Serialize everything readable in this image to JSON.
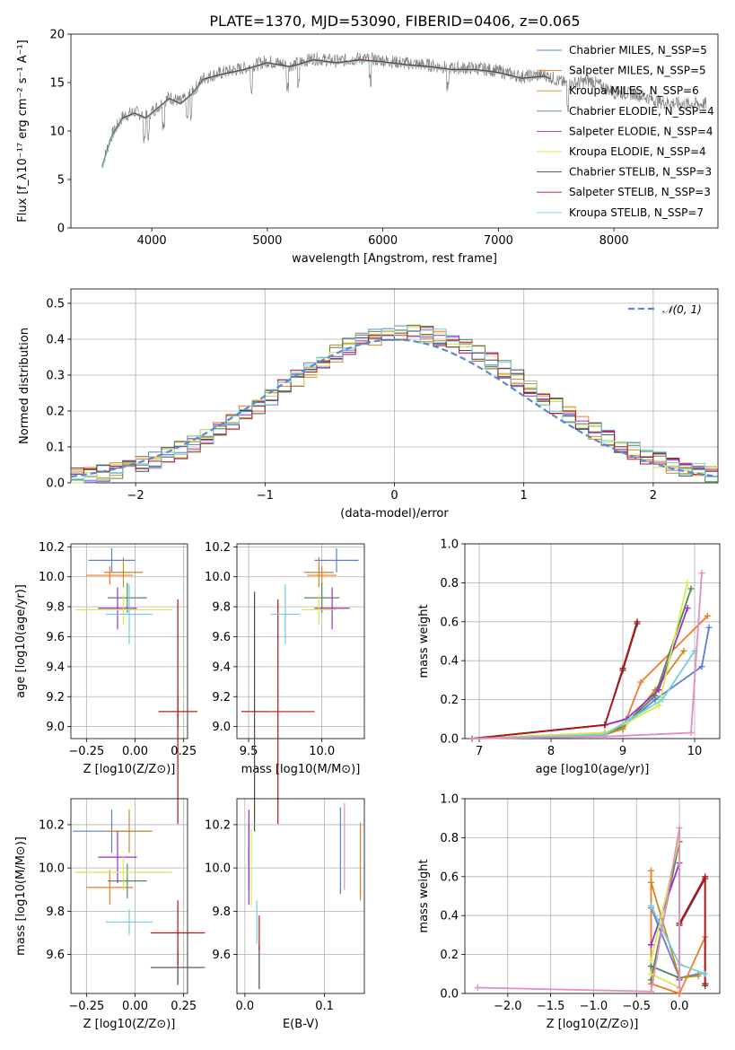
{
  "figure_title": "PLATE=1370, MJD=53090, FIBERID=0406, z=0.065",
  "colors": {
    "Chabrier MILES": "#5b7fd6",
    "Salpeter MILES": "#ee7a2a",
    "Kroupa MILES": "#c98a1e",
    "Chabrier ELODIE": "#4e8a4e",
    "Salpeter ELODIE": "#9b30c9",
    "Kroupa ELODIE": "#d7ea4c",
    "Chabrier STELIB": "#4a4a4a",
    "Salpeter STELIB": "#b81414",
    "Kroupa STELIB": "#6fd0dc"
  },
  "chart_data": [
    {
      "id": "spectrum",
      "type": "line",
      "title": "PLATE=1370, MJD=53090, FIBERID=0406, z=0.065",
      "xlabel": "wavelength [Angstrom, rest frame]",
      "ylabel": "Flux [f_λ10⁻¹⁷ erg cm⁻² s⁻¹ A⁻¹]",
      "xlim": [
        3300,
        8900
      ],
      "ylim": [
        0,
        20
      ],
      "xticks": [
        "4000",
        "5000",
        "6000",
        "7000",
        "8000"
      ],
      "yticks": [
        "0",
        "5",
        "10",
        "15",
        "20"
      ],
      "grid": false,
      "legend_position": "top-right",
      "legend": [
        "Chabrier MILES, N_SSP=5",
        "Salpeter MILES, N_SSP=5",
        "Kroupa MILES, N_SSP=6",
        "Chabrier ELODIE, N_SSP=4",
        "Salpeter ELODIE, N_SSP=4",
        "Kroupa ELODIE, N_SSP=4",
        "Chabrier STELIB, N_SSP=3",
        "Salpeter STELIB, N_SSP=3",
        "Kroupa STELIB, N_SSP=7"
      ],
      "data_continuum": [
        [
          3570,
          6.5
        ],
        [
          3650,
          9.5
        ],
        [
          3750,
          11.5
        ],
        [
          3850,
          12
        ],
        [
          3950,
          11.5
        ],
        [
          4050,
          12.5
        ],
        [
          4150,
          13.5
        ],
        [
          4250,
          13
        ],
        [
          4350,
          14
        ],
        [
          4450,
          15.5
        ],
        [
          4600,
          16
        ],
        [
          4800,
          16.5
        ],
        [
          5000,
          17.2
        ],
        [
          5200,
          16.8
        ],
        [
          5400,
          17.5
        ],
        [
          5600,
          17.2
        ],
        [
          5800,
          17.5
        ],
        [
          6000,
          17.3
        ],
        [
          6200,
          17
        ],
        [
          6400,
          16.8
        ],
        [
          6600,
          16.5
        ],
        [
          6800,
          16.5
        ],
        [
          7000,
          16.2
        ],
        [
          7200,
          15.6
        ],
        [
          7400,
          15.8
        ],
        [
          7600,
          14.8
        ],
        [
          7800,
          15.2
        ],
        [
          8000,
          14
        ],
        [
          8200,
          13.8
        ],
        [
          8400,
          13
        ],
        [
          8600,
          12.8
        ],
        [
          8800,
          12.8
        ]
      ]
    },
    {
      "id": "residuals",
      "type": "line",
      "xlabel": "(data-model)/error",
      "ylabel": "Normed distribution",
      "xlim": [
        -2.5,
        2.5
      ],
      "ylim": [
        0,
        0.54
      ],
      "xticks": [
        "−2",
        "−1",
        "0",
        "1",
        "2"
      ],
      "yticks": [
        "0.0",
        "0.1",
        "0.2",
        "0.3",
        "0.4",
        "0.5"
      ],
      "grid": true,
      "legend_position": "top-right",
      "legend": [
        "𝒩(0, 1)"
      ],
      "bin_width": 0.1
    },
    {
      "id": "age_vs_Z",
      "type": "scatter",
      "xlabel": "Z [log10(Z/Z⊙)]",
      "ylabel": "age [log10(age/yr)]",
      "xlim": [
        -0.33,
        0.27
      ],
      "ylim": [
        8.92,
        10.22
      ],
      "xticks": [
        "−0.25",
        "0.00",
        "0.25"
      ],
      "yticks": [
        "9.0",
        "9.2",
        "9.4",
        "9.6",
        "9.8",
        "10.0",
        "10.2"
      ],
      "grid": true,
      "points": [
        {
          "model": "Chabrier MILES",
          "x": -0.12,
          "y": 10.11,
          "xerr": 0.12,
          "yerr": 0.08
        },
        {
          "model": "Salpeter MILES",
          "x": -0.13,
          "y": 10.01,
          "xerr": 0.12,
          "yerr": 0.06
        },
        {
          "model": "Kroupa MILES",
          "x": -0.06,
          "y": 10.03,
          "xerr": 0.1,
          "yerr": 0.1
        },
        {
          "model": "Chabrier ELODIE",
          "x": -0.04,
          "y": 9.86,
          "xerr": 0.1,
          "yerr": 0.1
        },
        {
          "model": "Salpeter ELODIE",
          "x": -0.09,
          "y": 9.79,
          "xerr": 0.1,
          "yerr": 0.14
        },
        {
          "model": "Kroupa ELODIE",
          "x": -0.06,
          "y": 9.78,
          "xerr": 0.25,
          "yerr": 0.1
        },
        {
          "model": "Chabrier STELIB",
          "x": 0.22,
          "y": 9.1,
          "xerr": 0.1,
          "yerr": 0.1
        },
        {
          "model": "Salpeter STELIB",
          "x": 0.22,
          "y": 9.1,
          "xerr": 0.1,
          "yerr": 0.75
        },
        {
          "model": "Kroupa STELIB",
          "x": -0.03,
          "y": 9.75,
          "xerr": 0.12,
          "yerr": 0.2
        }
      ]
    },
    {
      "id": "age_vs_mass",
      "type": "scatter",
      "xlabel": "mass [log10(M/M⊙)]",
      "ylabel": "",
      "xlim": [
        9.42,
        10.29
      ],
      "ylim": [
        8.92,
        10.22
      ],
      "xticks": [
        "9.5",
        "10.0"
      ],
      "yticks": [
        "9.0",
        "9.2",
        "9.4",
        "9.6",
        "9.8",
        "10.0",
        "10.2"
      ],
      "grid": true,
      "points": [
        {
          "model": "Chabrier MILES",
          "x": 10.1,
          "y": 10.11,
          "xerr": 0.15,
          "yerr": 0.08
        },
        {
          "model": "Salpeter MILES",
          "x": 10.0,
          "y": 10.01,
          "xerr": 0.1,
          "yerr": 0.06
        },
        {
          "model": "Kroupa MILES",
          "x": 9.98,
          "y": 10.03,
          "xerr": 0.1,
          "yerr": 0.1
        },
        {
          "model": "Chabrier ELODIE",
          "x": 10.0,
          "y": 9.86,
          "xerr": 0.12,
          "yerr": 0.1
        },
        {
          "model": "Salpeter ELODIE",
          "x": 10.07,
          "y": 9.79,
          "xerr": 0.12,
          "yerr": 0.14
        },
        {
          "model": "Kroupa ELODIE",
          "x": 9.98,
          "y": 9.78,
          "xerr": 0.12,
          "yerr": 0.1
        },
        {
          "model": "Chabrier STELIB",
          "x": 9.54,
          "y": 9.1,
          "xerr": 0.09,
          "yerr": 0.8
        },
        {
          "model": "Salpeter STELIB",
          "x": 9.7,
          "y": 9.1,
          "xerr": 0.25,
          "yerr": 0.75
        },
        {
          "model": "Kroupa STELIB",
          "x": 9.75,
          "y": 9.75,
          "xerr": 0.1,
          "yerr": 0.2
        }
      ]
    },
    {
      "id": "weight_vs_age",
      "type": "line",
      "xlabel": "age [log10(age/yr)]",
      "ylabel": "mass weight",
      "xlim": [
        6.8,
        10.35
      ],
      "ylim": [
        0,
        1
      ],
      "xticks": [
        "7",
        "8",
        "9",
        "10"
      ],
      "yticks": [
        "0.0",
        "0.2",
        "0.4",
        "0.6",
        "0.8",
        "1.0"
      ],
      "grid": true,
      "series": [
        {
          "model": "Chabrier MILES",
          "x": [
            6.9,
            8.75,
            9.0,
            9.45,
            10.1,
            10.2
          ],
          "y": [
            0.0,
            0.02,
            0.06,
            0.2,
            0.37,
            0.57
          ]
        },
        {
          "model": "Salpeter MILES",
          "x": [
            6.9,
            8.75,
            9.0,
            9.25,
            10.18
          ],
          "y": [
            0.0,
            0.02,
            0.05,
            0.29,
            0.63
          ]
        },
        {
          "model": "Kroupa MILES",
          "x": [
            6.9,
            8.75,
            9.0,
            9.45,
            9.85
          ],
          "y": [
            0.0,
            0.03,
            0.05,
            0.25,
            0.45
          ]
        },
        {
          "model": "Chabrier ELODIE",
          "x": [
            6.9,
            8.75,
            9.05,
            9.45,
            9.95
          ],
          "y": [
            0.0,
            0.02,
            0.08,
            0.22,
            0.77
          ]
        },
        {
          "model": "Salpeter ELODIE",
          "x": [
            6.9,
            8.75,
            9.05,
            9.5,
            9.9
          ],
          "y": [
            0.0,
            0.07,
            0.1,
            0.25,
            0.67
          ]
        },
        {
          "model": "Kroupa ELODIE",
          "x": [
            6.9,
            8.75,
            9.05,
            9.5,
            9.9
          ],
          "y": [
            0.0,
            0.03,
            0.08,
            0.17,
            0.8
          ]
        },
        {
          "model": "Chabrier STELIB",
          "x": [
            6.9,
            8.75,
            9.0,
            9.2
          ],
          "y": [
            0.0,
            0.07,
            0.35,
            0.59
          ]
        },
        {
          "model": "Salpeter STELIB",
          "x": [
            6.9,
            8.75,
            9.0,
            9.2
          ],
          "y": [
            0.0,
            0.07,
            0.36,
            0.6
          ]
        },
        {
          "model": "Kroupa STELIB",
          "x": [
            6.9,
            8.75,
            9.1,
            9.55,
            10.0
          ],
          "y": [
            0.0,
            0.02,
            0.1,
            0.2,
            0.45
          ]
        },
        {
          "model": "pink",
          "x": [
            6.9,
            8.75,
            9.95,
            10.1
          ],
          "y": [
            0.0,
            0.01,
            0.03,
            0.85
          ]
        }
      ]
    },
    {
      "id": "mass_vs_Z",
      "type": "scatter",
      "xlabel": "Z [log10(Z/Z⊙)]",
      "ylabel": "mass [log10(M/M⊙)]",
      "xlim": [
        -0.33,
        0.27
      ],
      "ylim": [
        9.42,
        10.32
      ],
      "xticks": [
        "−0.25",
        "0.00",
        "0.25"
      ],
      "yticks": [
        "9.6",
        "9.8",
        "10.0",
        "10.2"
      ],
      "grid": true,
      "points": [
        {
          "model": "Chabrier MILES",
          "x": -0.12,
          "y": 10.17,
          "xerr": 0.2,
          "yerr": 0.1
        },
        {
          "model": "Salpeter MILES",
          "x": -0.13,
          "y": 9.91,
          "xerr": 0.12,
          "yerr": 0.08
        },
        {
          "model": "Kroupa MILES",
          "x": -0.03,
          "y": 10.17,
          "xerr": 0.12,
          "yerr": 0.1
        },
        {
          "model": "Chabrier ELODIE",
          "x": -0.04,
          "y": 9.94,
          "xerr": 0.1,
          "yerr": 0.08
        },
        {
          "model": "Salpeter ELODIE",
          "x": -0.09,
          "y": 10.05,
          "xerr": 0.1,
          "yerr": 0.12
        },
        {
          "model": "Kroupa ELODIE",
          "x": -0.06,
          "y": 9.98,
          "xerr": 0.25,
          "yerr": 0.08
        },
        {
          "model": "Chabrier STELIB",
          "x": 0.22,
          "y": 9.54,
          "xerr": 0.14,
          "yerr": 0.08
        },
        {
          "model": "Salpeter STELIB",
          "x": 0.22,
          "y": 9.7,
          "xerr": 0.14,
          "yerr": 0.15
        },
        {
          "model": "Kroupa STELIB",
          "x": -0.03,
          "y": 9.75,
          "xerr": 0.12,
          "yerr": 0.06
        }
      ]
    },
    {
      "id": "mass_vs_EBV",
      "type": "scatter",
      "xlabel": "E(B-V)",
      "ylabel": "",
      "xlim": [
        -0.01,
        0.15
      ],
      "ylim": [
        9.42,
        10.32
      ],
      "xticks": [
        "0.0",
        "0.1"
      ],
      "yticks": [
        "9.6",
        "9.8",
        "10.0",
        "10.2"
      ],
      "grid": true,
      "points": [
        {
          "model": "Chabrier MILES",
          "x": 0.12,
          "y": 10.08,
          "yerr": 0.2
        },
        {
          "model": "Salpeter MILES",
          "x": 0.145,
          "y": 10.03,
          "yerr": 0.18
        },
        {
          "model": "Kroupa MILES",
          "x": 0.005,
          "y": 10.1,
          "yerr": 0.1
        },
        {
          "model": "Chabrier ELODIE",
          "x": 0.005,
          "y": 10.0,
          "yerr": 0.1
        },
        {
          "model": "Salpeter ELODIE",
          "x": 0.005,
          "y": 10.05,
          "yerr": 0.22
        },
        {
          "model": "Kroupa ELODIE",
          "x": 0.008,
          "y": 10.0,
          "yerr": 0.18
        },
        {
          "model": "Chabrier STELIB",
          "x": 0.018,
          "y": 9.54,
          "yerr": 0.1
        },
        {
          "model": "Salpeter STELIB",
          "x": 0.018,
          "y": 9.7,
          "yerr": 0.08
        },
        {
          "model": "Kroupa STELIB",
          "x": 0.015,
          "y": 9.75,
          "yerr": 0.1
        },
        {
          "model": "pink",
          "x": 0.125,
          "y": 10.1,
          "yerr": 0.2
        }
      ]
    },
    {
      "id": "weight_vs_Z",
      "type": "line",
      "xlabel": "Z [log10(Z/Z⊙)]",
      "ylabel": "mass weight",
      "xlim": [
        -2.5,
        0.47
      ],
      "ylim": [
        0,
        1
      ],
      "xticks": [
        "−2.0",
        "−1.5",
        "−1.0",
        "−0.5",
        "0.0"
      ],
      "yticks": [
        "0.0",
        "0.2",
        "0.4",
        "0.6",
        "0.8",
        "1.0"
      ],
      "grid": true,
      "series": [
        {
          "model": "Chabrier MILES",
          "x": [
            -0.33,
            0.0,
            0.22
          ],
          "y": [
            0.44,
            0.08,
            0.1
          ]
        },
        {
          "model": "Salpeter MILES",
          "x": [
            -0.33,
            -0.33,
            0.0,
            0.3,
            0.3
          ],
          "y": [
            0.63,
            0.05,
            0.0,
            0.29,
            0.05
          ]
        },
        {
          "model": "Kroupa MILES",
          "x": [
            -0.33,
            0.0,
            0.22
          ],
          "y": [
            0.57,
            0.08,
            0.09
          ]
        },
        {
          "model": "Chabrier ELODIE",
          "x": [
            -0.33,
            0.0,
            0.0,
            -0.33
          ],
          "y": [
            0.07,
            0.78,
            0.08,
            0.14
          ]
        },
        {
          "model": "Salpeter ELODIE",
          "x": [
            -0.33,
            0.0,
            0.0
          ],
          "y": [
            0.25,
            0.67,
            0.07
          ]
        },
        {
          "model": "Kroupa ELODIE",
          "x": [
            -0.33,
            0.0,
            0.0,
            -0.33
          ],
          "y": [
            0.17,
            0.8,
            0.03,
            0.1
          ]
        },
        {
          "model": "Chabrier STELIB",
          "x": [
            0.0,
            0.3,
            0.3
          ],
          "y": [
            0.35,
            0.59,
            0.04
          ]
        },
        {
          "model": "Salpeter STELIB",
          "x": [
            0.0,
            0.3,
            0.3
          ],
          "y": [
            0.36,
            0.6,
            0.05
          ]
        },
        {
          "model": "Kroupa STELIB",
          "x": [
            -0.33,
            0.0,
            0.3
          ],
          "y": [
            0.45,
            0.15,
            0.1
          ]
        },
        {
          "model": "pink",
          "x": [
            -2.35,
            -0.33,
            0.0,
            0.0
          ],
          "y": [
            0.03,
            0.01,
            0.85,
            0.03
          ]
        }
      ]
    }
  ]
}
